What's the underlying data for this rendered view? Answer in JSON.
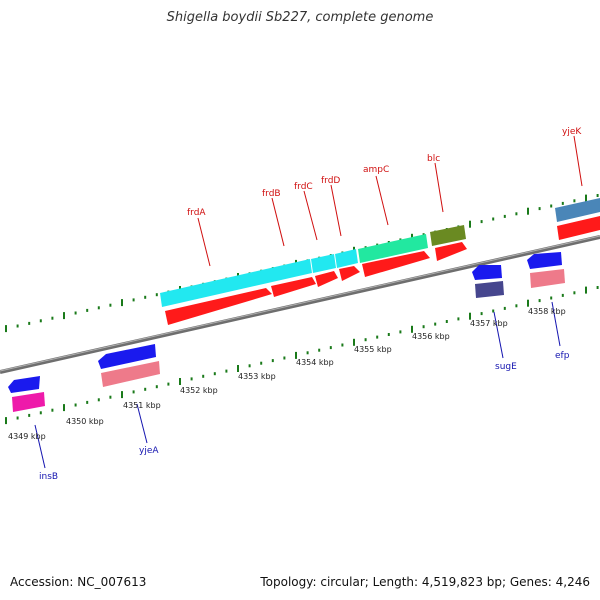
{
  "title": "Shigella boydii Sb227, complete genome",
  "footer": {
    "accession": "Accession: NC_007613",
    "summary": "Topology: circular; Length: 4,519,823 bp; Genes: 4,246"
  },
  "ruler_ticks": [
    "4349 kbp",
    "4350 kbp",
    "4351 kbp",
    "4352 kbp",
    "4353 kbp",
    "4354 kbp",
    "4355 kbp",
    "4356 kbp",
    "4357 kbp",
    "4358 kbp"
  ],
  "genes_top": [
    {
      "label": "frdA"
    },
    {
      "label": "frdB"
    },
    {
      "label": "frdC"
    },
    {
      "label": "frdD"
    },
    {
      "label": "ampC"
    },
    {
      "label": "blc"
    },
    {
      "label": "yjeK"
    }
  ],
  "genes_bottom": [
    {
      "label": "insB"
    },
    {
      "label": "yjeA"
    },
    {
      "label": "sugE"
    },
    {
      "label": "efp"
    }
  ],
  "colors": {
    "feature_red": "#ff1a1a",
    "cds_cyan": "#22e8f0",
    "cds_green": "#22e8a0",
    "cds_olive": "#6a8a22",
    "cds_steel": "#4a86b8",
    "reverse_blue": "#1a1aee",
    "reverse_pink": "#ee7a8a",
    "reverse_magenta": "#ee1aaa",
    "reverse_navy": "#46468e",
    "backbone": "#8a8a8a",
    "tick_green": "#1a7a1a"
  }
}
